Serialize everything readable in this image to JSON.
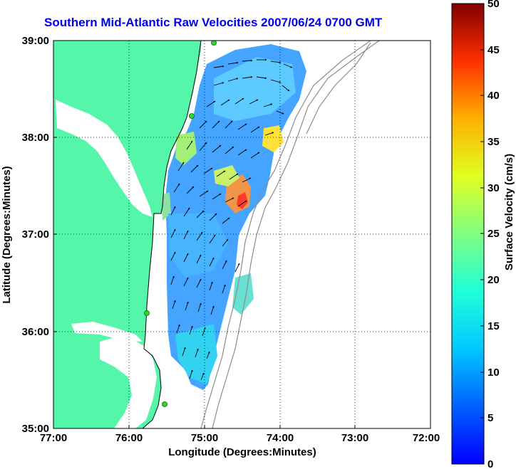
{
  "title": "Southern Mid-Atlantic Raw Velocities 2007/06/24 0700 GMT",
  "x_axis": {
    "label": "Longitude (Degrees:Minutes)",
    "ticks": [
      "77:00",
      "76:00",
      "75:00",
      "74:00",
      "73:00",
      "72:00"
    ]
  },
  "y_axis": {
    "label": "Latitude (Degrees:Minutes)",
    "ticks": [
      "39:00",
      "38:00",
      "37:00",
      "36:00",
      "35:00"
    ]
  },
  "colorbar": {
    "label": "Surface Velocity (cm/s)",
    "ticks": [
      "50",
      "45",
      "40",
      "35",
      "30",
      "25",
      "20",
      "15",
      "10",
      "5",
      "0"
    ],
    "range": [
      0,
      50
    ],
    "units": "cm/s"
  },
  "map": {
    "lon_range": [
      -77,
      -72
    ],
    "lat_range": [
      35,
      39
    ],
    "grid": true,
    "land_color": "#55f5aa",
    "water_color": "#ffffff",
    "bathymetry_color": "#8c8c8c",
    "arrow_color": "#000000",
    "station_color": "#22dd22"
  }
}
